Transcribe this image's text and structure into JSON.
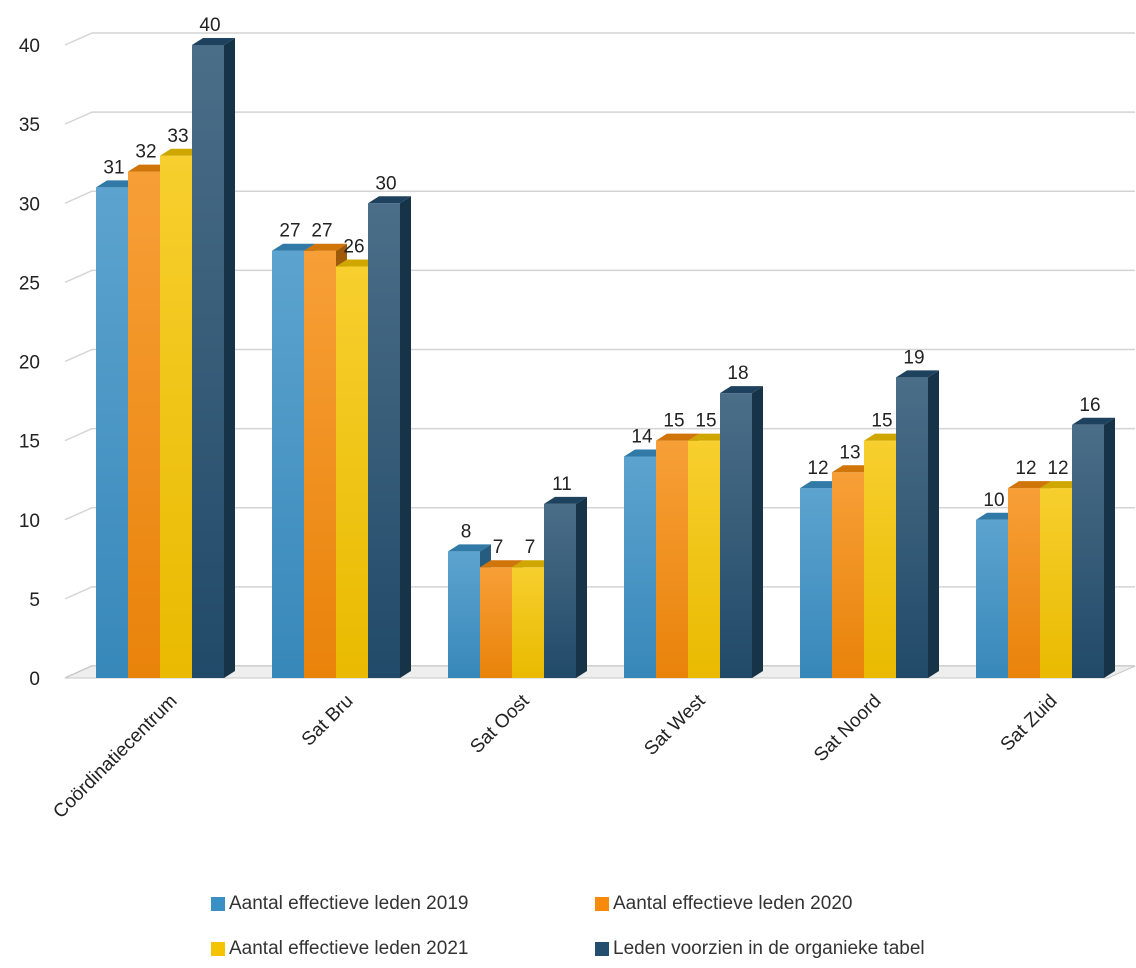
{
  "chart_data": {
    "type": "bar",
    "title": "",
    "xlabel": "",
    "ylabel": "",
    "ylim": [
      0,
      40
    ],
    "yticks": [
      0,
      5,
      10,
      15,
      20,
      25,
      30,
      35,
      40
    ],
    "grid": true,
    "legend_position": "bottom",
    "style": "3d-clustered-column",
    "categories": [
      "Coördinatiecentrum",
      "Sat Bru",
      "Sat Oost",
      "Sat West",
      "Sat Noord",
      "Sat Zuid"
    ],
    "series": [
      {
        "name": "Aantal effectieve leden 2019",
        "color": "#3a8fc4",
        "values": [
          31,
          27,
          8,
          14,
          12,
          10
        ]
      },
      {
        "name": "Aantal effectieve leden 2020",
        "color": "#f58a0b",
        "values": [
          32,
          27,
          7,
          15,
          13,
          12
        ]
      },
      {
        "name": "Aantal effectieve leden 2021",
        "color": "#f5c400",
        "values": [
          33,
          26,
          7,
          15,
          15,
          12
        ]
      },
      {
        "name": "Leden voorzien in de organieke tabel",
        "color": "#234e6e",
        "values": [
          40,
          30,
          11,
          18,
          19,
          16
        ]
      }
    ]
  }
}
